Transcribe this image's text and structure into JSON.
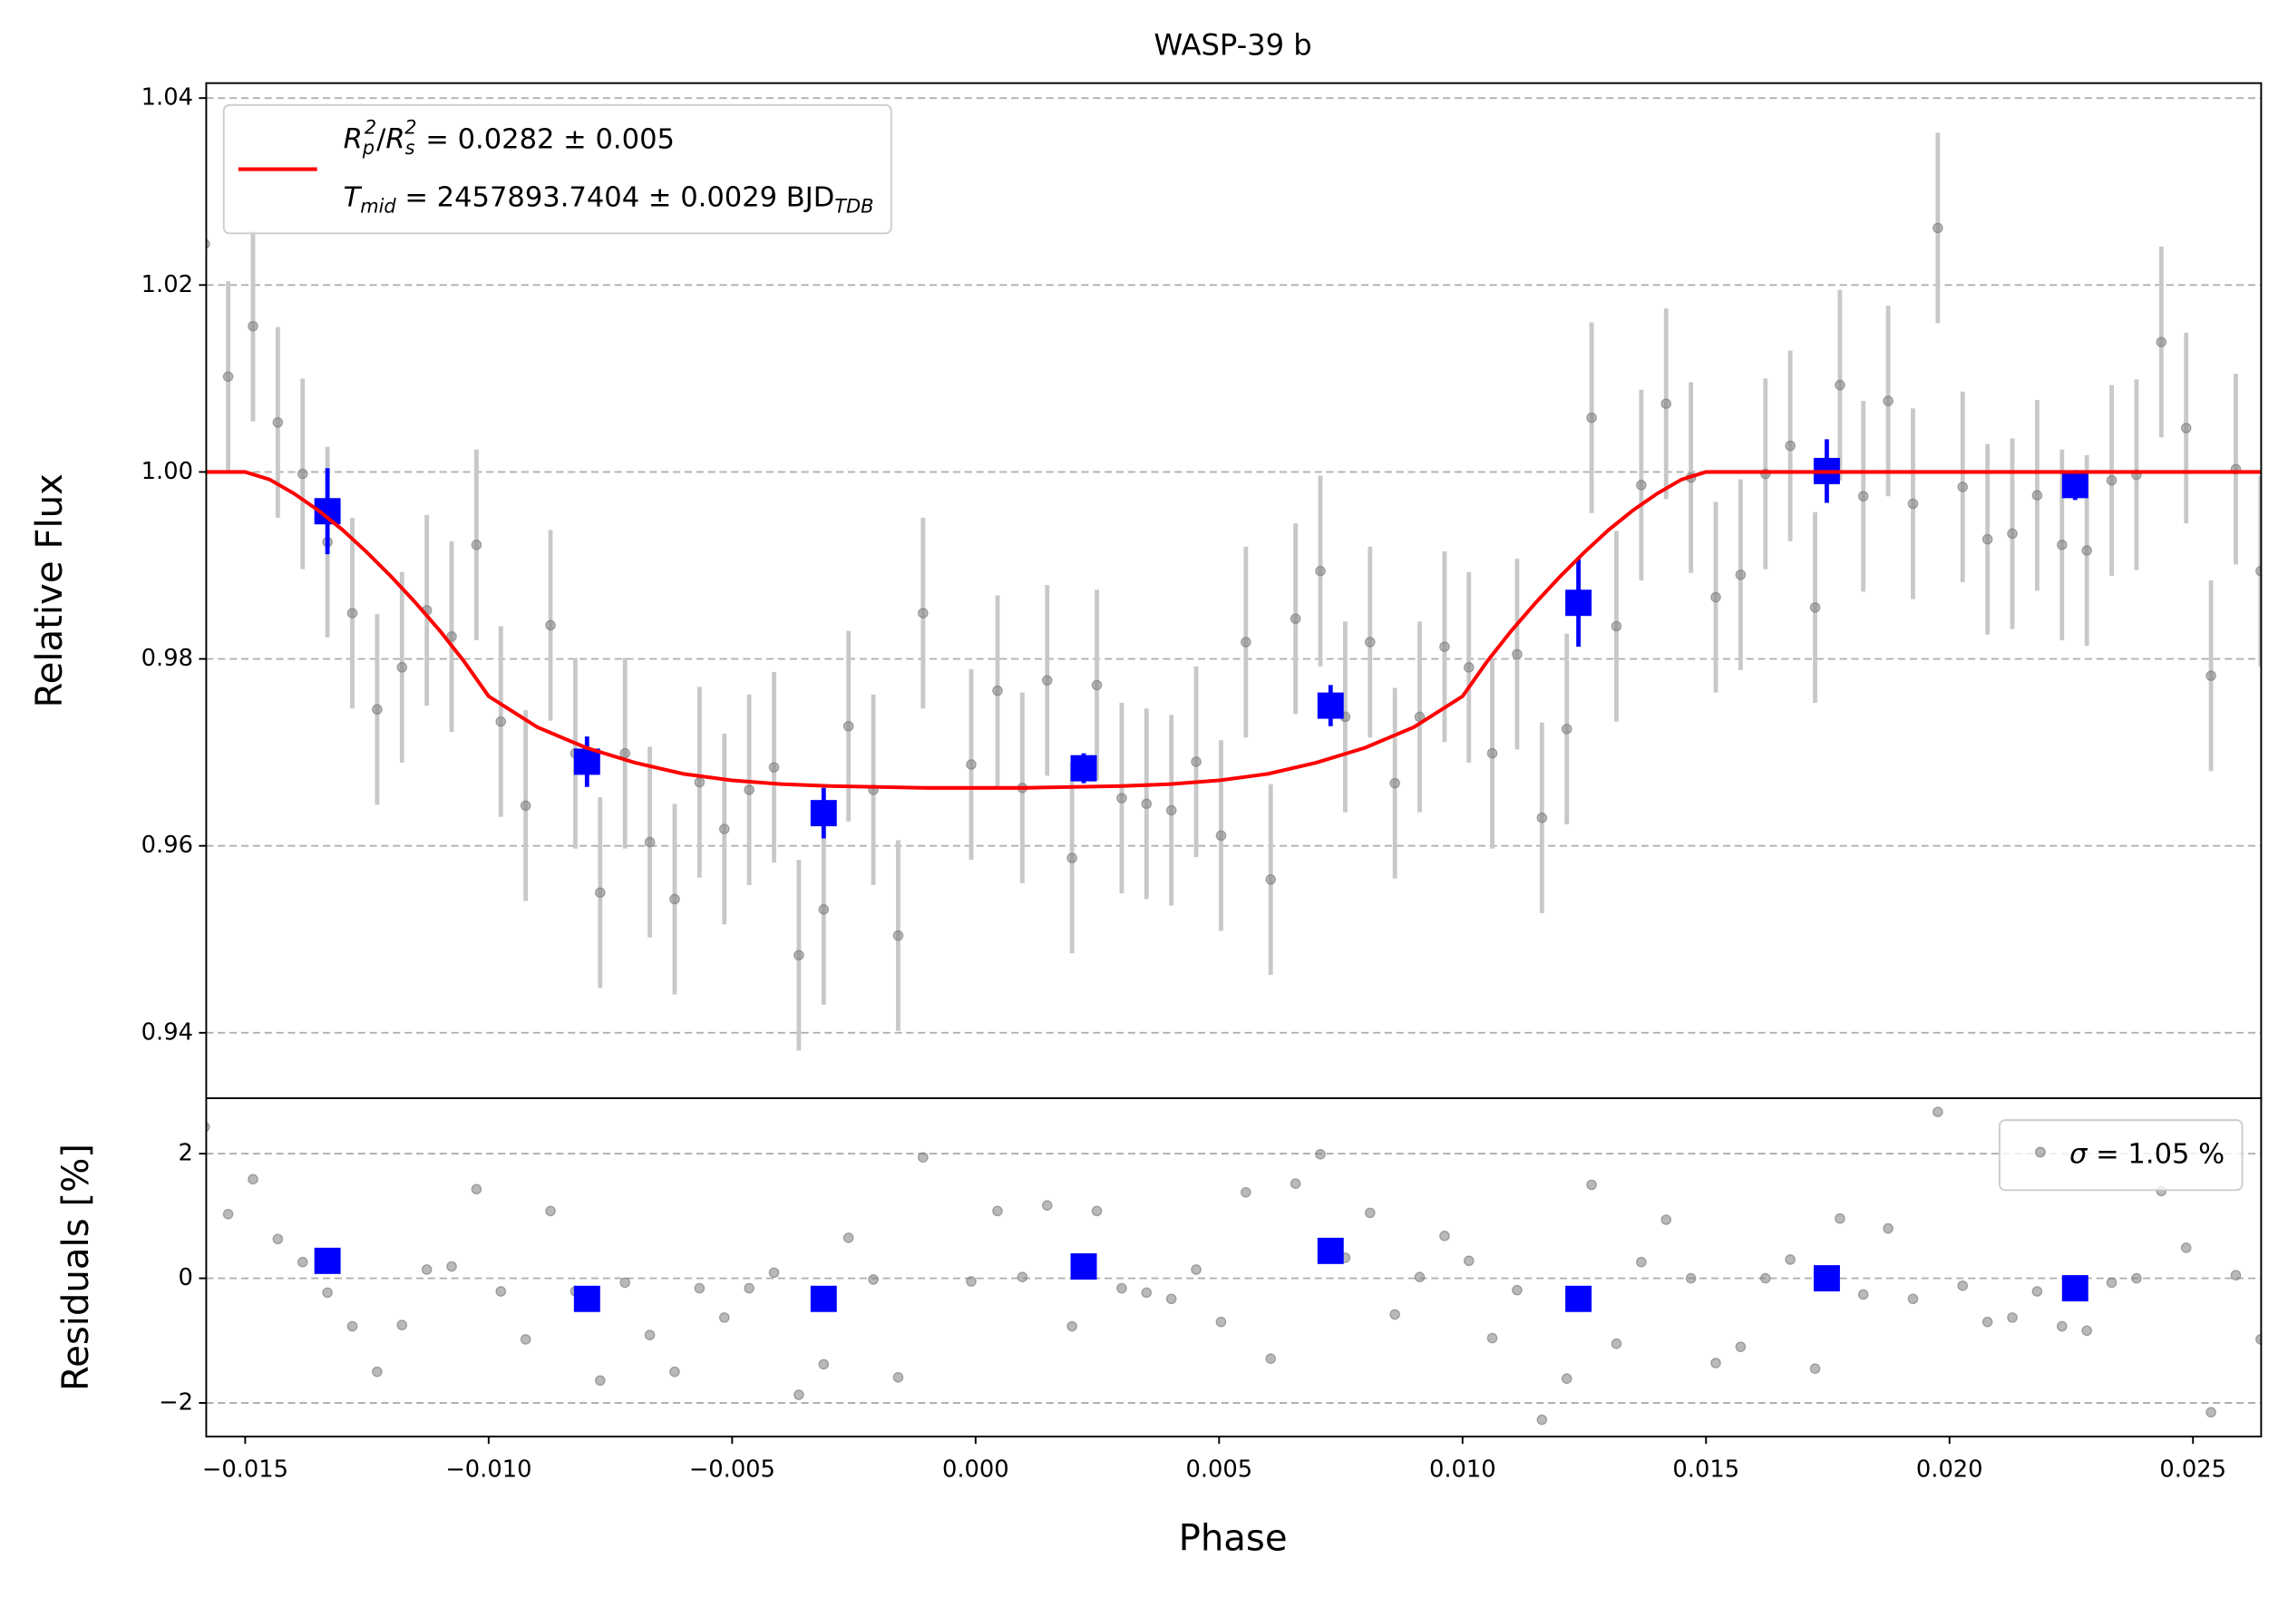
{
  "chart_data": [
    {
      "type": "scatter",
      "title": "WASP-39 b",
      "y_label": "Relative Flux",
      "xlim": [
        -0.0158,
        0.0264
      ],
      "ylim": [
        0.933,
        1.0416
      ],
      "yticks": [
        0.94,
        0.96,
        0.98,
        {
          "value": 1.0,
          "label": "1.00"
        },
        1.02,
        1.04
      ],
      "grid": true,
      "legend": "upper left",
      "series": [
        {
          "kind": "data",
          "color": "#808080",
          "error_color": "#c8c8c8",
          "error": 0.0102,
          "x": [
            -0.01583,
            -0.01535,
            -0.01484,
            -0.01433,
            -0.01382,
            -0.01331,
            -0.0128,
            -0.01229,
            -0.01178,
            -0.01127,
            -0.01076,
            -0.01025,
            -0.00975,
            -0.00924,
            -0.00873,
            -0.00822,
            -0.00771,
            -0.0072,
            -0.00669,
            -0.00618,
            -0.00567,
            -0.00516,
            -0.00465,
            -0.00414,
            -0.00363,
            -0.00312,
            -0.00261,
            -0.0021,
            -0.00159,
            -0.00108,
            -9e-05,
            0.00045,
            0.00096,
            0.00147,
            0.00198,
            0.00249,
            0.003,
            0.00351,
            0.00402,
            0.00453,
            0.00504,
            0.00555,
            0.00606,
            0.00657,
            0.00708,
            0.00759,
            0.0081,
            0.00861,
            0.00912,
            0.00963,
            0.01013,
            0.01061,
            0.01112,
            0.01163,
            0.01214,
            0.01265,
            0.01316,
            0.01367,
            0.01418,
            0.01469,
            0.0152,
            0.01571,
            0.01622,
            0.01673,
            0.01724,
            0.01775,
            0.01823,
            0.01874,
            0.01925,
            0.01976,
            0.02027,
            0.02078,
            0.02129,
            0.0218,
            0.02231,
            0.02282,
            0.02333,
            0.02384,
            0.02435,
            0.02486,
            0.02537,
            0.02588,
            0.02639
          ],
          "values": [
            1.0244,
            1.0102,
            1.0156,
            1.0053,
            0.9998,
            0.9925,
            0.9849,
            0.9746,
            0.9791,
            0.9852,
            0.9824,
            0.9922,
            0.9733,
            0.9643,
            0.9836,
            0.9699,
            0.955,
            0.9699,
            0.9604,
            0.9543,
            0.9668,
            0.9618,
            0.966,
            0.9684,
            0.9483,
            0.9532,
            0.9728,
            0.966,
            0.9504,
            0.9849,
            0.9687,
            0.9766,
            0.9662,
            0.9777,
            0.9587,
            0.9772,
            0.9651,
            0.9645,
            0.9638,
            0.969,
            0.9611,
            0.9818,
            0.9564,
            0.9843,
            0.9894,
            0.9738,
            0.9818,
            0.9667,
            0.9738,
            0.9813,
            0.9791,
            0.9699,
            0.9805,
            0.963,
            0.9725,
            1.0058,
            0.9835,
            0.9986,
            1.0073,
            0.9994,
            0.9866,
            0.989,
            0.9998,
            1.0028,
            0.9855,
            1.0093,
            0.9974,
            1.0076,
            0.9966,
            1.0261,
            0.9984,
            0.9928,
            0.9934,
            0.9975,
            0.9922,
            0.9916,
            0.9991,
            0.9997,
            1.0139,
            1.0047,
            0.9782,
            1.0003,
            0.9894
          ]
        },
        {
          "kind": "binned",
          "color": "#0000ff",
          "x": [
            -0.01331,
            -0.00798,
            -0.00312,
            0.00222,
            0.00729,
            0.01238,
            0.01748,
            0.02258
          ],
          "values": [
            0.9958,
            0.969,
            0.9635,
            0.9683,
            0.975,
            0.986,
            1.0001,
            0.9986
          ],
          "errors": [
            0.0046,
            0.0027,
            0.0027,
            0.0016,
            0.0022,
            0.0047,
            0.0034,
            0.0016
          ]
        },
        {
          "kind": "model",
          "color": "#ff0000",
          "name_parts": [
            [
              {
                "text": "R",
                "style": "italic"
              },
              {
                "text": "p",
                "style": "sub"
              },
              {
                "text": "2",
                "style": "sup"
              },
              {
                "text": "/",
                "style": "normal"
              },
              {
                "text": "R",
                "style": "italic"
              },
              {
                "text": "s",
                "style": "sub"
              },
              {
                "text": "2",
                "style": "sup"
              },
              {
                "text": " = 0.0282 ± 0.005",
                "style": "normal"
              }
            ],
            [
              {
                "text": "T",
                "style": "italic"
              },
              {
                "text": "mid",
                "style": "sub"
              },
              {
                "text": " = 2457893.7404 ± 0.0029 BJD",
                "style": "normal"
              },
              {
                "text": "TDB",
                "style": "sub"
              }
            ]
          ],
          "x": [
            -0.0158,
            -0.015,
            -0.0145,
            -0.014,
            -0.0135,
            -0.013,
            -0.0125,
            -0.012,
            -0.0115,
            -0.011,
            -0.0105,
            -0.01,
            -0.009,
            -0.008,
            -0.007,
            -0.006,
            -0.005,
            -0.004,
            -0.003,
            -0.002,
            -0.001,
            0,
            0.001,
            0.002,
            0.003,
            0.004,
            0.005,
            0.006,
            0.007,
            0.008,
            0.009,
            0.01,
            0.0105,
            0.011,
            0.0115,
            0.012,
            0.0125,
            0.013,
            0.0135,
            0.014,
            0.0145,
            0.015,
            0.0264
          ],
          "values": [
            1.0,
            1.0,
            0.9992,
            0.9977,
            0.9959,
            0.9938,
            0.9914,
            0.9888,
            0.986,
            0.983,
            0.9797,
            0.976,
            0.9727,
            0.9705,
            0.9689,
            0.9677,
            0.967,
            0.9666,
            0.9664,
            0.9663,
            0.9662,
            0.9662,
            0.9662,
            0.9663,
            0.9664,
            0.9666,
            0.967,
            0.9677,
            0.9689,
            0.9705,
            0.9727,
            0.976,
            0.9797,
            0.983,
            0.986,
            0.9888,
            0.9914,
            0.9938,
            0.9959,
            0.9977,
            0.9992,
            1.0,
            1.0
          ]
        }
      ]
    },
    {
      "type": "scatter",
      "x_label": "Phase",
      "y_label": "Residuals [%]",
      "xlim": [
        -0.0158,
        0.0264
      ],
      "xticks": [
        {
          "value": -0.015,
          "label": "−0.015"
        },
        {
          "value": -0.01,
          "label": "−0.010"
        },
        {
          "value": -0.005,
          "label": "−0.005"
        },
        {
          "value": 0,
          "label": "0.000"
        },
        0.005,
        {
          "value": 0.01,
          "label": "0.010"
        },
        0.015,
        {
          "value": 0.02,
          "label": "0.020"
        },
        0.025
      ],
      "ylim": [
        -2.54,
        2.89
      ],
      "yticks": [
        {
          "value": -2,
          "label": "−2"
        },
        0,
        2
      ],
      "grid": true,
      "legend": "upper right",
      "series": [
        {
          "kind": "data",
          "color": "#808080",
          "name_parts": [
            [
              {
                "text": "σ",
                "style": "italic"
              },
              {
                "text": " = 1.05 %",
                "style": "normal"
              }
            ]
          ],
          "x": [
            -0.01583,
            -0.01535,
            -0.01484,
            -0.01433,
            -0.01382,
            -0.01331,
            -0.0128,
            -0.01229,
            -0.01178,
            -0.01127,
            -0.01076,
            -0.01025,
            -0.00975,
            -0.00924,
            -0.00873,
            -0.00822,
            -0.00771,
            -0.0072,
            -0.00669,
            -0.00618,
            -0.00567,
            -0.00516,
            -0.00465,
            -0.00414,
            -0.00363,
            -0.00312,
            -0.00261,
            -0.0021,
            -0.00159,
            -0.00108,
            -9e-05,
            0.00045,
            0.00096,
            0.00147,
            0.00198,
            0.00249,
            0.003,
            0.00351,
            0.00402,
            0.00453,
            0.00504,
            0.00555,
            0.00606,
            0.00657,
            0.00708,
            0.00759,
            0.0081,
            0.00861,
            0.00912,
            0.00963,
            0.01013,
            0.01061,
            0.01112,
            0.01163,
            0.01214,
            0.01265,
            0.01316,
            0.01367,
            0.01418,
            0.01469,
            0.0152,
            0.01571,
            0.01622,
            0.01673,
            0.01724,
            0.01775,
            0.01823,
            0.01874,
            0.01925,
            0.01976,
            0.02027,
            0.02078,
            0.02129,
            0.0218,
            0.02231,
            0.02282,
            0.02333,
            0.02384,
            0.02435,
            0.02486,
            0.02537,
            0.02588,
            0.02639
          ],
          "values": [
            2.43,
            1.03,
            1.59,
            0.63,
            0.26,
            -0.23,
            -0.77,
            -1.5,
            -0.75,
            0.14,
            0.19,
            1.43,
            -0.21,
            -0.98,
            1.08,
            -0.21,
            -1.64,
            -0.07,
            -0.91,
            -1.5,
            -0.16,
            -0.63,
            -0.16,
            0.09,
            -1.87,
            -1.38,
            0.65,
            -0.02,
            -1.59,
            1.94,
            -0.05,
            1.08,
            0.02,
            1.17,
            -0.77,
            1.08,
            -0.16,
            -0.23,
            -0.33,
            0.14,
            -0.7,
            1.38,
            -1.29,
            1.52,
            1.99,
            0.33,
            1.05,
            -0.58,
            0.02,
            0.68,
            0.28,
            -0.96,
            -0.19,
            -2.27,
            -1.61,
            1.5,
            -1.05,
            0.26,
            0.94,
            0,
            -1.36,
            -1.1,
            0,
            0.3,
            -1.45,
            0.96,
            -0.26,
            0.8,
            -0.33,
            2.67,
            -0.12,
            -0.7,
            -0.63,
            -0.21,
            -0.77,
            -0.84,
            -0.07,
            0,
            1.4,
            0.49,
            -2.15,
            0.05,
            -0.98
          ]
        },
        {
          "kind": "binned",
          "color": "#0000ff",
          "x": [
            -0.01331,
            -0.00798,
            -0.00312,
            0.00222,
            0.00729,
            0.01238,
            0.01748,
            0.02258
          ],
          "values": [
            0.28,
            -0.33,
            -0.33,
            0.19,
            0.44,
            -0.33,
            0,
            -0.16
          ]
        }
      ]
    }
  ]
}
